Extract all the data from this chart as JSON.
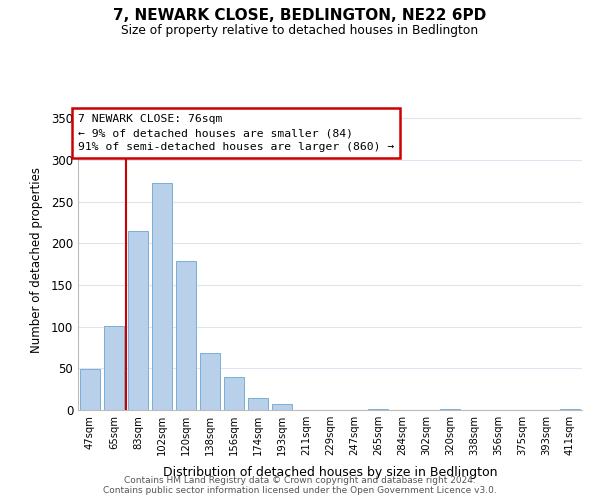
{
  "title": "7, NEWARK CLOSE, BEDLINGTON, NE22 6PD",
  "subtitle": "Size of property relative to detached houses in Bedlington",
  "xlabel": "Distribution of detached houses by size in Bedlington",
  "ylabel": "Number of detached properties",
  "footnote1": "Contains HM Land Registry data © Crown copyright and database right 2024.",
  "footnote2": "Contains public sector information licensed under the Open Government Licence v3.0.",
  "bin_labels": [
    "47sqm",
    "65sqm",
    "83sqm",
    "102sqm",
    "120sqm",
    "138sqm",
    "156sqm",
    "174sqm",
    "193sqm",
    "211sqm",
    "229sqm",
    "247sqm",
    "265sqm",
    "284sqm",
    "302sqm",
    "320sqm",
    "338sqm",
    "356sqm",
    "375sqm",
    "393sqm",
    "411sqm"
  ],
  "bar_values": [
    49,
    101,
    215,
    272,
    179,
    69,
    40,
    14,
    7,
    0,
    0,
    0,
    1,
    0,
    0,
    1,
    0,
    0,
    0,
    0,
    1
  ],
  "bar_color": "#b8d0ea",
  "bar_edge_color": "#7bafd4",
  "marker_color": "#cc0000",
  "annotation_text": "7 NEWARK CLOSE: 76sqm\n← 9% of detached houses are smaller (84)\n91% of semi-detached houses are larger (860) →",
  "ylim": [
    0,
    360
  ],
  "yticks": [
    0,
    50,
    100,
    150,
    200,
    250,
    300,
    350
  ],
  "bg_color": "#ffffff",
  "grid_color": "#dce6f0"
}
